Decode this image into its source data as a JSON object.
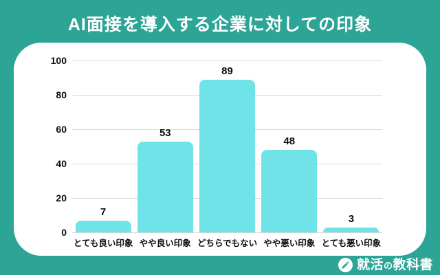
{
  "page": {
    "title": "AI面接を導入する企業に対しての印象",
    "brand": {
      "icon": "pencil-icon",
      "part1": "就活",
      "part2": "の",
      "part3": "教科書"
    },
    "colors": {
      "background": "#2CA496",
      "card": "#FFFFFF",
      "bar": "#70E3E8",
      "gridline": "#D8D8D8",
      "text": "#0D0D0D",
      "title_text": "#FFFFFF"
    }
  },
  "chart_data": {
    "type": "bar",
    "title": "AI面接を導入する企業に対しての印象",
    "categories": [
      "とても良い印象",
      "やや良い印象",
      "どちらでもない",
      "やや悪い印象",
      "とても悪い印象"
    ],
    "values": [
      7,
      53,
      89,
      48,
      3
    ],
    "data_labels": [
      "7",
      "53",
      "89",
      "48",
      "3"
    ],
    "xlabel": "",
    "ylabel": "",
    "ylim": [
      0,
      100
    ],
    "yticks": [
      0,
      20,
      40,
      60,
      80,
      100
    ],
    "grid": true,
    "legend": false,
    "bar_color": "#70E3E8"
  }
}
